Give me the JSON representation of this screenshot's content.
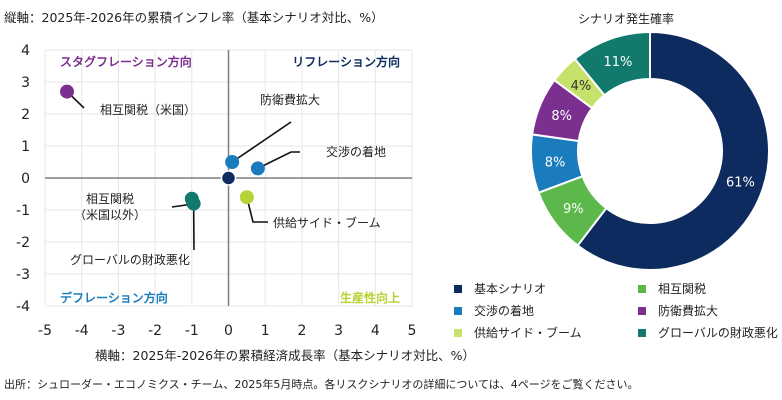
{
  "scatter_title": "縦軸：2025年-2026年の累積インフレ率（基本シナリオ対比、%）",
  "x_axis_title": "横軸：2025年-2026年の累積経済成長率（基本シナリオ対比、%）",
  "source_note": "出所：シュローダー・エコノミクス・チーム、2025年5月時点。各リスクシナリオの詳細については、4ページをご覧ください。",
  "quadrants": {
    "top_left": {
      "label": "スタグフレーション方向",
      "color": "#7b2f8e"
    },
    "top_right": {
      "label": "リフレーション方向",
      "color": "#0d2b5e"
    },
    "bottom_left": {
      "label": "デフレーション方向",
      "color": "#1a7bbd"
    },
    "bottom_right": {
      "label": "生産性向上",
      "color": "#b5d334"
    }
  },
  "donut_title": "シナリオ発生確率",
  "chart_data": [
    {
      "type": "scatter",
      "xlabel": "横軸：2025年-2026年の累積経済成長率（基本シナリオ対比、%）",
      "ylabel": "縦軸：2025年-2026年の累積インフレ率（基本シナリオ対比、%）",
      "xlim": [
        -5,
        5
      ],
      "ylim": [
        -4,
        4
      ],
      "x_ticks": [
        -5,
        -4,
        -3,
        -2,
        -1,
        0,
        1,
        2,
        3,
        4,
        5
      ],
      "y_ticks": [
        4,
        3,
        2,
        1,
        0,
        -1,
        -2,
        -3,
        -4
      ],
      "points": [
        {
          "name": "基本シナリオ",
          "x": 0,
          "y": 0,
          "color": "#0d2b5e"
        },
        {
          "name": "相互関税（米国）",
          "x": -4.4,
          "y": 2.7,
          "color": "#7b2f8e"
        },
        {
          "name": "防衛費拡大",
          "x": 0.1,
          "y": 0.5,
          "color": "#1a7bbd"
        },
        {
          "name": "交渉の着地",
          "x": 0.8,
          "y": 0.3,
          "color": "#1a7bbd"
        },
        {
          "name": "供給サイド・ブーム",
          "x": 0.5,
          "y": -0.6,
          "color": "#b5d334"
        },
        {
          "name": "相互関税（米国以外）",
          "x": -1.0,
          "y": -0.65,
          "color": "#117a6d"
        },
        {
          "name": "グローバルの財政悪化",
          "x": -0.95,
          "y": -0.8,
          "color": "#117a6d"
        }
      ],
      "label_lines": [
        [
          "相互関税（米国）"
        ],
        [
          "防衛費拡大"
        ],
        [
          "交渉の着地"
        ],
        [
          "供給サイド・ブーム"
        ],
        [
          "相互関税",
          "（米国以外）"
        ],
        [
          "グローバルの財政悪化"
        ]
      ]
    },
    {
      "type": "pie",
      "title": "シナリオ発生確率",
      "slices": [
        {
          "label": "基本シナリオ",
          "value": 61,
          "color": "#0d2b5e"
        },
        {
          "label": "相互関税",
          "value": 9,
          "color": "#5cb84a"
        },
        {
          "label": "交渉の着地",
          "value": 8,
          "color": "#1a7bbd"
        },
        {
          "label": "防衛費拡大",
          "value": 8,
          "color": "#7b2f8e"
        },
        {
          "label": "供給サイド・ブーム",
          "value": 4,
          "color": "#c6e26a"
        },
        {
          "label": "グローバルの財政悪化",
          "value": 11,
          "color": "#117a6d"
        }
      ],
      "value_labels": [
        "61%",
        "9%",
        "8%",
        "8%",
        "4%",
        "11%"
      ],
      "legend": [
        {
          "label": "基本シナリオ",
          "color": "#0d2b5e"
        },
        {
          "label": "相互関税",
          "color": "#5cb84a"
        },
        {
          "label": "交渉の着地",
          "color": "#1a7bbd"
        },
        {
          "label": "防衛費拡大",
          "color": "#7b2f8e"
        },
        {
          "label": "供給サイド・ブーム",
          "color": "#c6e26a"
        },
        {
          "label": "グローバルの財政悪化",
          "color": "#117a6d"
        }
      ]
    }
  ]
}
